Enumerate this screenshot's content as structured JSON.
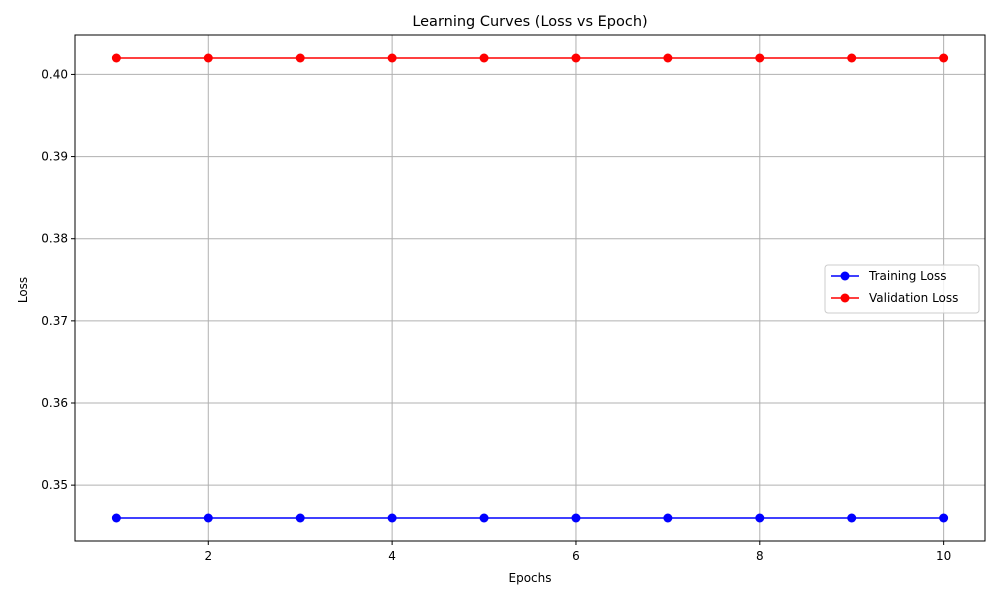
{
  "chart_data": {
    "type": "line",
    "title": "Learning Curves (Loss vs Epoch)",
    "xlabel": "Epochs",
    "ylabel": "Loss",
    "x": [
      1,
      2,
      3,
      4,
      5,
      6,
      7,
      8,
      9,
      10
    ],
    "series": [
      {
        "name": "Training Loss",
        "color": "#0000ff",
        "marker": "circle",
        "values": [
          0.346,
          0.346,
          0.346,
          0.346,
          0.346,
          0.346,
          0.346,
          0.346,
          0.346,
          0.346
        ]
      },
      {
        "name": "Validation Loss",
        "color": "#ff0000",
        "marker": "circle",
        "values": [
          0.402,
          0.402,
          0.402,
          0.402,
          0.402,
          0.402,
          0.402,
          0.402,
          0.402,
          0.402
        ]
      }
    ],
    "xlim": [
      0.55,
      10.45
    ],
    "ylim": [
      0.3432,
      0.4048
    ],
    "xticks": [
      2,
      4,
      6,
      8,
      10
    ],
    "xtick_labels": [
      "2",
      "4",
      "6",
      "8",
      "10"
    ],
    "yticks": [
      0.35,
      0.36,
      0.37,
      0.38,
      0.39,
      0.4
    ],
    "ytick_labels": [
      "0.35",
      "0.36",
      "0.37",
      "0.38",
      "0.39",
      "0.40"
    ],
    "grid": true,
    "grid_color": "#b0b0b0",
    "legend_position": "center-right"
  }
}
